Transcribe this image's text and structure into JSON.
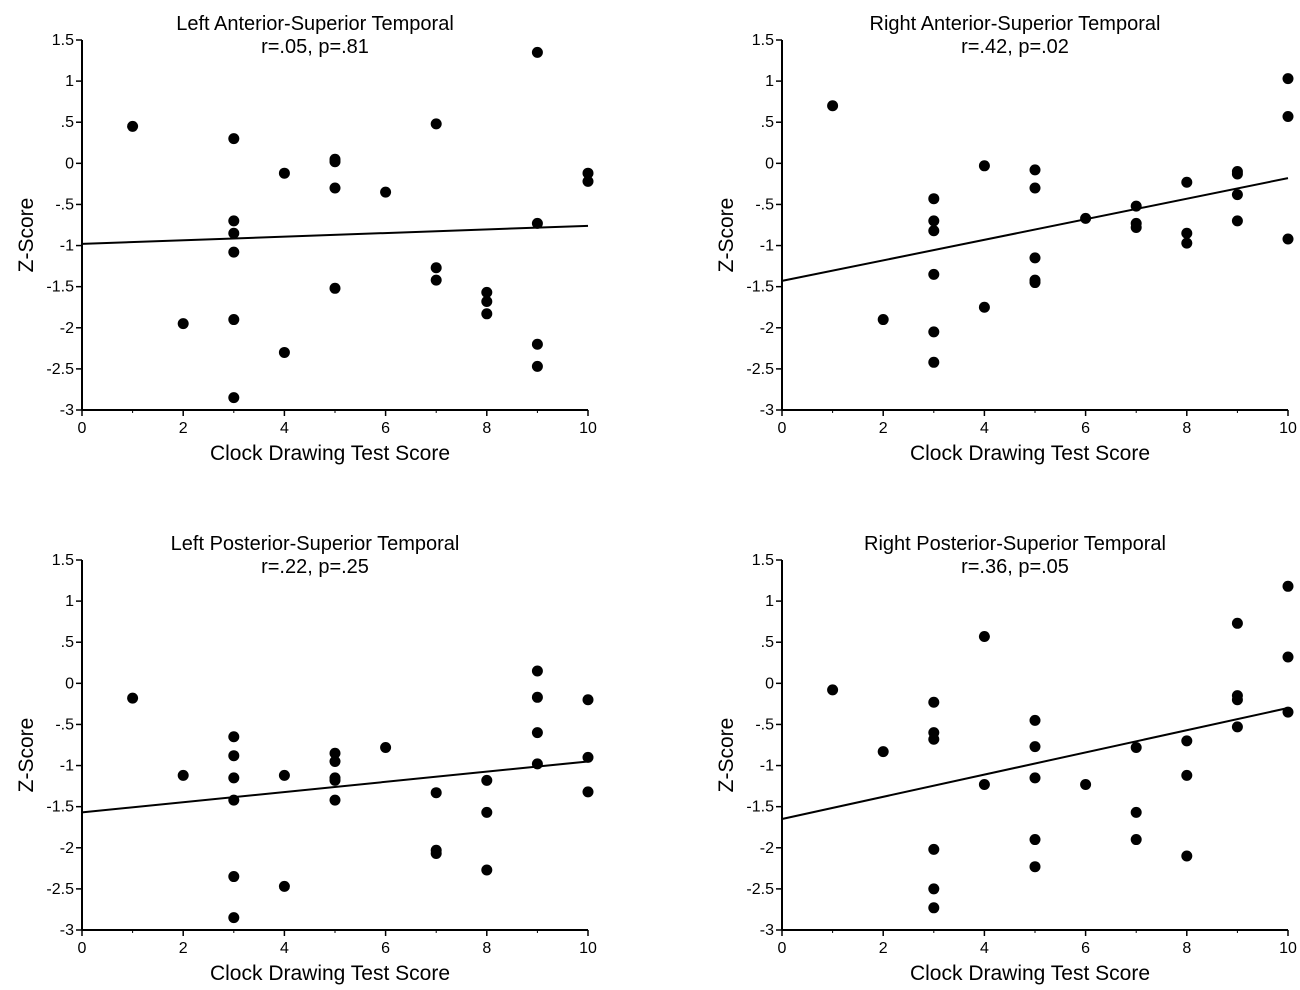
{
  "chart_data": [
    {
      "type": "scatter",
      "title": "Left Anterior-Superior Temporal",
      "subtitle": "r=.05, p=.81",
      "xlabel": "Clock Drawing Test Score",
      "ylabel": "Z-Score",
      "xlim": [
        0,
        10
      ],
      "ylim": [
        -3,
        1.5
      ],
      "xticks": [
        "0",
        "2",
        "4",
        "6",
        "8",
        "10"
      ],
      "yticks": [
        "1.5",
        "1",
        ".5",
        "0",
        "-.5",
        "-1",
        "-1.5",
        "-2",
        "-2.5",
        "-3"
      ],
      "grid": false,
      "points": [
        [
          1,
          0.45
        ],
        [
          2,
          -1.95
        ],
        [
          3,
          0.3
        ],
        [
          3,
          -0.7
        ],
        [
          3,
          -0.85
        ],
        [
          3,
          -1.08
        ],
        [
          3,
          -1.9
        ],
        [
          3,
          -2.85
        ],
        [
          4,
          -0.12
        ],
        [
          4,
          -2.3
        ],
        [
          5,
          0.05
        ],
        [
          5,
          0.02
        ],
        [
          5,
          -0.3
        ],
        [
          5,
          -1.52
        ],
        [
          6,
          -0.35
        ],
        [
          7,
          0.48
        ],
        [
          7,
          -1.27
        ],
        [
          7,
          -1.42
        ],
        [
          8,
          -1.57
        ],
        [
          8,
          -1.68
        ],
        [
          8,
          -1.83
        ],
        [
          9,
          1.35
        ],
        [
          9,
          -0.73
        ],
        [
          9,
          -2.2
        ],
        [
          9,
          -2.47
        ],
        [
          10,
          -0.12
        ],
        [
          10,
          -0.22
        ]
      ],
      "fit": [
        [
          0,
          -0.98
        ],
        [
          10,
          -0.76
        ]
      ]
    },
    {
      "type": "scatter",
      "title": "Right Anterior-Superior Temporal",
      "subtitle": "r=.42, p=.02",
      "xlabel": "Clock Drawing Test Score",
      "ylabel": "Z-Score",
      "xlim": [
        0,
        10
      ],
      "ylim": [
        -3,
        1.5
      ],
      "xticks": [
        "0",
        "2",
        "4",
        "6",
        "8",
        "10"
      ],
      "yticks": [
        "1.5",
        "1",
        ".5",
        "0",
        "-.5",
        "-1",
        "-1.5",
        "-2",
        "-2.5",
        "-3"
      ],
      "grid": false,
      "points": [
        [
          1,
          0.7
        ],
        [
          2,
          -1.9
        ],
        [
          3,
          -0.43
        ],
        [
          3,
          -0.7
        ],
        [
          3,
          -0.82
        ],
        [
          3,
          -1.35
        ],
        [
          3,
          -2.05
        ],
        [
          3,
          -2.42
        ],
        [
          4,
          -0.03
        ],
        [
          4,
          -1.75
        ],
        [
          5,
          -0.08
        ],
        [
          5,
          -0.3
        ],
        [
          5,
          -1.15
        ],
        [
          5,
          -1.42
        ],
        [
          5,
          -1.45
        ],
        [
          6,
          -0.67
        ],
        [
          7,
          -0.52
        ],
        [
          7,
          -0.73
        ],
        [
          7,
          -0.78
        ],
        [
          8,
          -0.23
        ],
        [
          8,
          -0.85
        ],
        [
          8,
          -0.97
        ],
        [
          9,
          -0.1
        ],
        [
          9,
          -0.13
        ],
        [
          9,
          -0.38
        ],
        [
          9,
          -0.7
        ],
        [
          10,
          1.03
        ],
        [
          10,
          0.57
        ],
        [
          10,
          -0.92
        ]
      ],
      "fit": [
        [
          0,
          -1.43
        ],
        [
          10,
          -0.18
        ]
      ]
    },
    {
      "type": "scatter",
      "title": "Left Posterior-Superior Temporal",
      "subtitle": "r=.22, p=.25",
      "xlabel": "Clock Drawing Test Score",
      "ylabel": "Z-Score",
      "xlim": [
        0,
        10
      ],
      "ylim": [
        -3,
        1.5
      ],
      "xticks": [
        "0",
        "2",
        "4",
        "6",
        "8",
        "10"
      ],
      "yticks": [
        "1.5",
        "1",
        ".5",
        "0",
        "-.5",
        "-1",
        "-1.5",
        "-2",
        "-2.5",
        "-3"
      ],
      "grid": false,
      "points": [
        [
          1,
          -0.18
        ],
        [
          2,
          -1.12
        ],
        [
          3,
          -0.65
        ],
        [
          3,
          -0.88
        ],
        [
          3,
          -1.15
        ],
        [
          3,
          -1.42
        ],
        [
          3,
          -2.35
        ],
        [
          3,
          -2.85
        ],
        [
          4,
          -1.12
        ],
        [
          4,
          -2.47
        ],
        [
          5,
          -0.85
        ],
        [
          5,
          -0.95
        ],
        [
          5,
          -1.15
        ],
        [
          5,
          -1.18
        ],
        [
          5,
          -1.42
        ],
        [
          6,
          -0.78
        ],
        [
          7,
          -1.33
        ],
        [
          7,
          -2.03
        ],
        [
          7,
          -2.07
        ],
        [
          8,
          -1.18
        ],
        [
          8,
          -1.57
        ],
        [
          8,
          -2.27
        ],
        [
          9,
          0.15
        ],
        [
          9,
          -0.17
        ],
        [
          9,
          -0.6
        ],
        [
          9,
          -0.98
        ],
        [
          10,
          -0.2
        ],
        [
          10,
          -0.9
        ],
        [
          10,
          -1.32
        ]
      ],
      "fit": [
        [
          0,
          -1.57
        ],
        [
          10,
          -0.95
        ]
      ]
    },
    {
      "type": "scatter",
      "title": "Right Posterior-Superior Temporal",
      "subtitle": "r=.36, p=.05",
      "xlabel": "Clock Drawing Test Score",
      "ylabel": "Z-Score",
      "xlim": [
        0,
        10
      ],
      "ylim": [
        -3,
        1.5
      ],
      "xticks": [
        "0",
        "2",
        "4",
        "6",
        "8",
        "10"
      ],
      "yticks": [
        "1.5",
        "1",
        ".5",
        "0",
        "-.5",
        "-1",
        "-1.5",
        "-2",
        "-2.5",
        "-3"
      ],
      "grid": false,
      "points": [
        [
          1,
          -0.08
        ],
        [
          2,
          -0.83
        ],
        [
          3,
          -0.23
        ],
        [
          3,
          -0.6
        ],
        [
          3,
          -0.68
        ],
        [
          3,
          -2.02
        ],
        [
          3,
          -2.5
        ],
        [
          3,
          -2.73
        ],
        [
          4,
          0.57
        ],
        [
          4,
          -1.23
        ],
        [
          5,
          -0.45
        ],
        [
          5,
          -0.77
        ],
        [
          5,
          -1.15
        ],
        [
          5,
          -1.9
        ],
        [
          5,
          -2.23
        ],
        [
          6,
          -1.23
        ],
        [
          7,
          -0.78
        ],
        [
          7,
          -1.57
        ],
        [
          7,
          -1.9
        ],
        [
          8,
          -0.7
        ],
        [
          8,
          -1.12
        ],
        [
          8,
          -2.1
        ],
        [
          9,
          0.73
        ],
        [
          9,
          -0.15
        ],
        [
          9,
          -0.2
        ],
        [
          9,
          -0.53
        ],
        [
          10,
          1.18
        ],
        [
          10,
          0.32
        ],
        [
          10,
          -0.35
        ]
      ],
      "fit": [
        [
          0,
          -1.65
        ],
        [
          10,
          -0.3
        ]
      ]
    }
  ]
}
